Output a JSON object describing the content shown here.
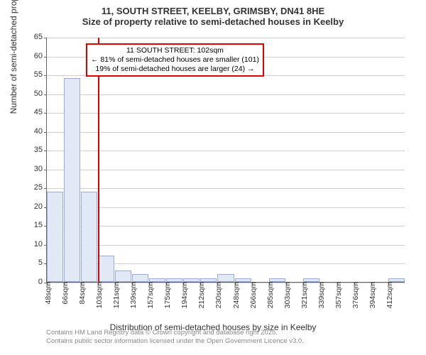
{
  "chart": {
    "type": "histogram",
    "title": "11, SOUTH STREET, KEELBY, GRIMSBY, DN41 8HE",
    "subtitle": "Size of property relative to semi-detached houses in Keelby",
    "ylabel": "Number of semi-detached properties",
    "xlabel": "Distribution of semi-detached houses by size in Keelby",
    "ylim": [
      0,
      65
    ],
    "ytick_step": 5,
    "yticks": [
      0,
      5,
      10,
      15,
      20,
      25,
      30,
      35,
      40,
      45,
      50,
      55,
      60,
      65
    ],
    "xticks": [
      "48sqm",
      "66sqm",
      "84sqm",
      "103sqm",
      "121sqm",
      "139sqm",
      "157sqm",
      "175sqm",
      "194sqm",
      "212sqm",
      "230sqm",
      "248sqm",
      "266sqm",
      "285sqm",
      "303sqm",
      "321sqm",
      "339sqm",
      "357sqm",
      "376sqm",
      "394sqm",
      "412sqm"
    ],
    "bars": [
      24,
      54,
      24,
      7,
      3,
      2,
      1,
      1,
      1,
      1,
      2,
      1,
      0,
      1,
      0,
      1,
      0,
      0,
      0,
      0,
      1
    ],
    "bar_fill": "#e1e9f6",
    "bar_border": "#9aaed4",
    "background_color": "#ffffff",
    "grid_color": "#d0d0d0",
    "axis_color": "#666666",
    "marker": {
      "position_index": 3.0,
      "color": "#dd0000"
    },
    "annotation": {
      "line1": "11 SOUTH STREET: 102sqm",
      "line2": "← 81% of semi-detached houses are smaller (101)",
      "line3": "19% of semi-detached houses are larger (24) →",
      "border_color": "#dd0000"
    },
    "footer": {
      "line1": "Contains HM Land Registry data © Crown copyright and database right 2025.",
      "line2": "Contains public sector information licensed under the Open Government Licence v3.0."
    },
    "title_fontsize": 13,
    "label_fontsize": 12,
    "tick_fontsize": 11
  }
}
